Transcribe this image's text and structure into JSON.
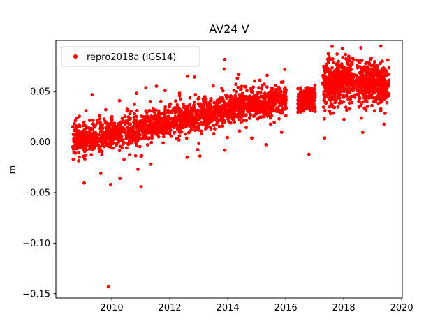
{
  "figure": {
    "title": "AV24 V"
  },
  "chart_data": {
    "type": "scatter",
    "title": "AV24 V",
    "xlabel": "",
    "ylabel": "m",
    "xlim": [
      2008.07,
      2020.02
    ],
    "ylim": [
      -0.1543,
      0.1006
    ],
    "grid": false,
    "xticks": {
      "values": [
        2010,
        2012,
        2014,
        2016,
        2018,
        2020
      ],
      "labels": [
        "2010",
        "2012",
        "2014",
        "2016",
        "2018",
        "2020"
      ]
    },
    "yticks": {
      "values": [
        0.05,
        0.0,
        -0.05,
        -0.1,
        -0.15
      ],
      "labels": [
        "0.05",
        "0.00",
        "−0.05",
        "−0.10",
        "−0.15"
      ]
    },
    "legend": {
      "label": "repro2018a (IGS14)",
      "position": "upper left",
      "marker_color": "#ff0000"
    },
    "marker": {
      "shape": "circle",
      "color": "#ff0000",
      "radius_px": 2.4
    },
    "series": [
      {
        "name": "repro2018a (IGS14)",
        "color": "#ff0000",
        "generator": {
          "seed": 7,
          "segments": [
            {
              "x_start": 2008.65,
              "x_end": 2016.02,
              "n": 1900,
              "y_start": 0.0,
              "y_end": 0.044,
              "sigma": 0.0075,
              "tail_prob": 0.06,
              "tail_mult": 2.4,
              "x_step": 0.019
            },
            {
              "x_start": 2016.42,
              "x_end": 2017.02,
              "n": 300,
              "y_start": 0.04,
              "y_end": 0.045,
              "sigma": 0.005,
              "tail_prob": 0.03,
              "tail_mult": 2.0,
              "x_step": 0.019
            },
            {
              "x_start": 2017.28,
              "x_end": 2018.38,
              "n": 480,
              "y_start": 0.056,
              "y_end": 0.062,
              "sigma": 0.011,
              "tail_prob": 0.05,
              "tail_mult": 1.8,
              "x_step": 0.019
            },
            {
              "x_start": 2018.44,
              "x_end": 2019.56,
              "n": 470,
              "y_start": 0.058,
              "y_end": 0.06,
              "sigma": 0.01,
              "tail_prob": 0.05,
              "tail_mult": 1.8,
              "x_step": 0.019
            }
          ],
          "outliers": [
            [
              2009.88,
              -0.1432
            ],
            [
              2009.96,
              -0.042
            ],
            [
              2009.62,
              -0.031
            ],
            [
              2010.28,
              -0.036
            ],
            [
              2010.9,
              -0.027
            ],
            [
              2011.35,
              -0.022
            ],
            [
              2012.6,
              -0.015
            ],
            [
              2013.9,
              -0.008
            ],
            [
              2016.8,
              -0.012
            ],
            [
              2017.34,
              0.004
            ]
          ]
        }
      }
    ]
  }
}
